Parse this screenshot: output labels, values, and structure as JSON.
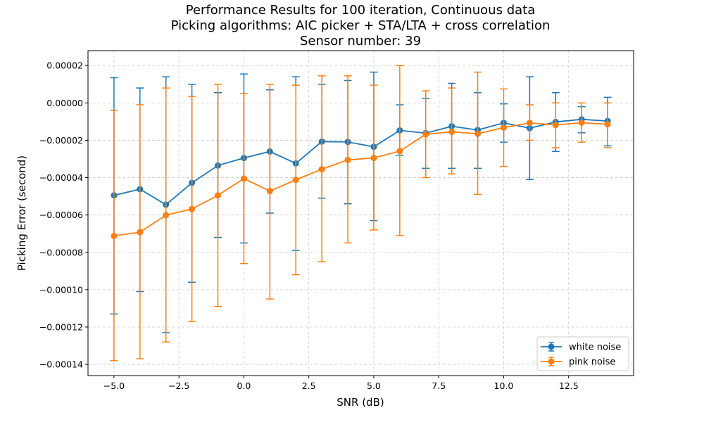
{
  "chart_data": {
    "type": "line",
    "title": [
      "Performance Results for 100 iteration, Continuous data",
      "Picking algorithms: AIC picker + STA/LTA + cross correlation",
      "Sensor number: 39"
    ],
    "xlabel": "SNR (dB)",
    "ylabel": "Picking Error (second)",
    "xlim": [
      -6.0,
      15.0
    ],
    "ylim": [
      -0.000146,
      2.8e-05
    ],
    "xticks": [
      -5.0,
      -2.5,
      0.0,
      2.5,
      5.0,
      7.5,
      10.0,
      12.5
    ],
    "xtick_labels": [
      "−5.0",
      "−2.5",
      "0.0",
      "2.5",
      "5.0",
      "7.5",
      "10.0",
      "12.5"
    ],
    "yticks": [
      2e-05,
      0.0,
      -2e-05,
      -4e-05,
      -6e-05,
      -8e-05,
      -0.0001,
      -0.00012,
      -0.00014
    ],
    "ytick_labels": [
      "0.00002",
      "0.00000",
      "−0.00002",
      "−0.00004",
      "−0.00006",
      "−0.00008",
      "−0.00010",
      "−0.00012",
      "−0.00014"
    ],
    "grid": true,
    "legend_position": "lower-right",
    "x": [
      -5,
      -4,
      -3,
      -2,
      -1,
      0,
      1,
      2,
      3,
      4,
      5,
      6,
      7,
      8,
      9,
      10,
      11,
      12,
      13,
      14
    ],
    "series": [
      {
        "name": "white noise",
        "color": "#1f77b4",
        "values": [
          -4.95e-05,
          -4.62e-05,
          -5.45e-05,
          -4.28e-05,
          -3.35e-05,
          -2.95e-05,
          -2.6e-05,
          -3.24e-05,
          -2.07e-05,
          -2.09e-05,
          -2.35e-05,
          -1.47e-05,
          -1.62e-05,
          -1.25e-05,
          -1.45e-05,
          -1.07e-05,
          -1.35e-05,
          -1.02e-05,
          -8.8e-06,
          -9.7e-06
        ],
        "err_lower": [
          -0.000113,
          -0.000101,
          -0.000123,
          -9.6e-05,
          -7.2e-05,
          -7.5e-05,
          -5.9e-05,
          -7.9e-05,
          -5.1e-05,
          -5.4e-05,
          -6.3e-05,
          -2.8e-05,
          -3.5e-05,
          -3.5e-05,
          -3.5e-05,
          -2.1e-05,
          -4.1e-05,
          -2.6e-05,
          -1.6e-05,
          -2.3e-05
        ],
        "err_upper": [
          1.35e-05,
          8e-06,
          1.4e-05,
          1e-05,
          5.5e-06,
          1.55e-05,
          7e-06,
          1.4e-05,
          1e-05,
          1.2e-05,
          1.65e-05,
          -1e-06,
          2.5e-06,
          1.05e-05,
          5.5e-06,
          -5e-07,
          1.4e-05,
          5.5e-06,
          -2e-06,
          3e-06
        ]
      },
      {
        "name": "pink noise",
        "color": "#ff7f0e",
        "values": [
          -7.12e-05,
          -6.92e-05,
          -6.01e-05,
          -5.68e-05,
          -4.95e-05,
          -4.05e-05,
          -4.72e-05,
          -4.12e-05,
          -3.55e-05,
          -3.05e-05,
          -2.95e-05,
          -2.58e-05,
          -1.68e-05,
          -1.55e-05,
          -1.65e-05,
          -1.32e-05,
          -1.07e-05,
          -1.18e-05,
          -1.06e-05,
          -1.14e-05
        ],
        "err_lower": [
          -0.000138,
          -0.000137,
          -0.000128,
          -0.000117,
          -0.000109,
          -8.6e-05,
          -0.000105,
          -9.2e-05,
          -8.5e-05,
          -7.5e-05,
          -6.8e-05,
          -7.1e-05,
          -4e-05,
          -3.8e-05,
          -4.9e-05,
          -3.4e-05,
          -2e-05,
          -2.4e-05,
          -2.1e-05,
          -2.4e-05
        ],
        "err_upper": [
          -4e-06,
          -1e-06,
          8e-06,
          3.5e-06,
          1e-05,
          5e-06,
          1e-05,
          9.5e-06,
          1.45e-05,
          1.45e-05,
          9.5e-06,
          2e-05,
          6.5e-06,
          8e-06,
          1.65e-05,
          7.5e-06,
          -1e-06,
          0.0,
          0.0,
          0.0
        ]
      }
    ]
  }
}
